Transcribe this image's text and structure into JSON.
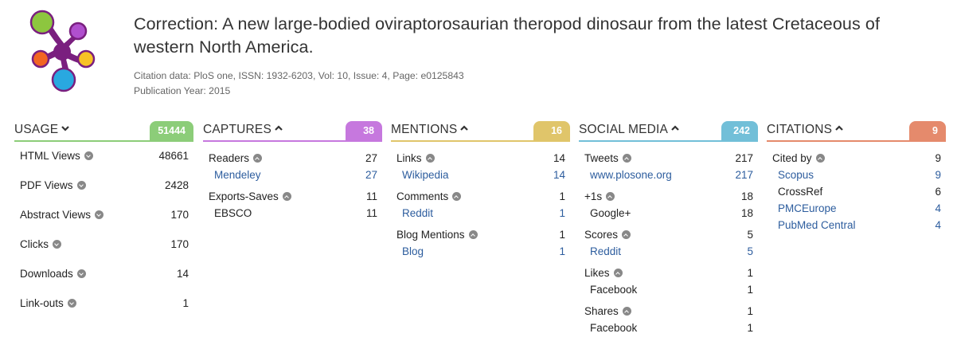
{
  "logo": {
    "icon": "altmetric-flower-logo",
    "colors": [
      "#7a1f7f",
      "#8dc63f",
      "#b04fce",
      "#f26522",
      "#f7c325",
      "#29a8e0"
    ]
  },
  "article": {
    "title": "Correction: A new large-bodied oviraptorosaurian theropod dinosaur from the latest Cretaceous of western North America.",
    "citation": "Citation data: PloS one, ISSN: 1932-6203, Vol: 10, Issue: 4, Page: e0125843",
    "year": "Publication Year: 2015"
  },
  "columns": [
    {
      "key": "usage",
      "name": "USAGE",
      "badge": "51444",
      "color": "#8ccd79",
      "expanded": false,
      "groups": [
        {
          "label": "HTML Views",
          "value": "48661",
          "sources": []
        },
        {
          "label": "PDF Views",
          "value": "2428",
          "sources": []
        },
        {
          "label": "Abstract Views",
          "value": "170",
          "sources": []
        },
        {
          "label": "Clicks",
          "value": "170",
          "sources": []
        },
        {
          "label": "Downloads",
          "value": "14",
          "sources": []
        },
        {
          "label": "Link-outs",
          "value": "1",
          "sources": []
        }
      ]
    },
    {
      "key": "captures",
      "name": "CAPTURES",
      "badge": "38",
      "color": "#c678de",
      "expanded": true,
      "groups": [
        {
          "label": "Readers",
          "value": "27",
          "sources": [
            {
              "label": "Mendeley",
              "value": "27",
              "link": true
            }
          ]
        },
        {
          "label": "Exports-Saves",
          "value": "11",
          "sources": [
            {
              "label": "EBSCO",
              "value": "11",
              "link": false
            }
          ]
        }
      ]
    },
    {
      "key": "mentions",
      "name": "MENTIONS",
      "badge": "16",
      "color": "#e0c56a",
      "expanded": true,
      "groups": [
        {
          "label": "Links",
          "value": "14",
          "sources": [
            {
              "label": "Wikipedia",
              "value": "14",
              "link": true
            }
          ]
        },
        {
          "label": "Comments",
          "value": "1",
          "sources": [
            {
              "label": "Reddit",
              "value": "1",
              "link": true
            }
          ]
        },
        {
          "label": "Blog Mentions",
          "value": "1",
          "sources": [
            {
              "label": "Blog",
              "value": "1",
              "link": true
            }
          ]
        }
      ]
    },
    {
      "key": "social",
      "name": "SOCIAL MEDIA",
      "badge": "242",
      "color": "#72bfd8",
      "expanded": true,
      "groups": [
        {
          "label": "Tweets",
          "value": "217",
          "sources": [
            {
              "label": "www.plosone.org",
              "value": "217",
              "link": true
            }
          ]
        },
        {
          "label": "+1s",
          "value": "18",
          "sources": [
            {
              "label": "Google+",
              "value": "18",
              "link": false
            }
          ]
        },
        {
          "label": "Scores",
          "value": "5",
          "sources": [
            {
              "label": "Reddit",
              "value": "5",
              "link": true
            }
          ]
        },
        {
          "label": "Likes",
          "value": "1",
          "sources": [
            {
              "label": "Facebook",
              "value": "1",
              "link": false
            }
          ]
        },
        {
          "label": "Shares",
          "value": "1",
          "sources": [
            {
              "label": "Facebook",
              "value": "1",
              "link": false
            }
          ]
        }
      ]
    },
    {
      "key": "citations",
      "name": "CITATIONS",
      "badge": "9",
      "color": "#e58a6c",
      "expanded": true,
      "groups": [
        {
          "label": "Cited by",
          "value": "9",
          "sources": [
            {
              "label": "Scopus",
              "value": "9",
              "link": true
            },
            {
              "label": "CrossRef",
              "value": "6",
              "link": false
            },
            {
              "label": "PMCEurope",
              "value": "4",
              "link": true
            },
            {
              "label": "PubMed Central",
              "value": "4",
              "link": true
            }
          ]
        }
      ]
    }
  ]
}
